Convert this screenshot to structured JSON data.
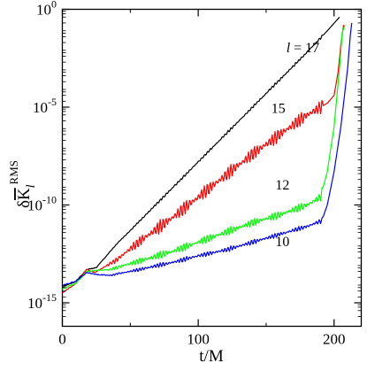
{
  "chart_data": {
    "type": "line",
    "title": "",
    "xlabel": "t/M",
    "ylabel": {
      "main": "δK",
      "overbar": "K",
      "subscript": "l",
      "superscript": "RMS"
    },
    "xlim": [
      0,
      220
    ],
    "ylim_log10": [
      -16.2,
      0
    ],
    "y_scale": "log",
    "x_ticks": [
      0,
      100,
      200
    ],
    "x_tick_labels": [
      "0",
      "100",
      "200"
    ],
    "x_minor_ticks": [
      50,
      150
    ],
    "y_ticks_log10": [
      -15,
      -10,
      -5,
      0
    ],
    "y_tick_labels": [
      {
        "base": "10",
        "exp": "-15"
      },
      {
        "base": "10",
        "exp": "-10"
      },
      {
        "base": "10",
        "exp": "-5"
      },
      {
        "base": "10",
        "exp": "0"
      }
    ],
    "grid": false,
    "series": [
      {
        "name": "17",
        "label_text": "l = 17",
        "label_italic": "l",
        "label_rest": " = 17",
        "label_at": {
          "x": 177,
          "log10_y": -2.2
        },
        "color": "#000000",
        "oscillation": 0.06,
        "points": [
          [
            0,
            -14.2
          ],
          [
            10,
            -13.9
          ],
          [
            18,
            -13.3
          ],
          [
            25,
            -13.2
          ],
          [
            40,
            -12.0
          ],
          [
            60,
            -10.6
          ],
          [
            80,
            -9.2
          ],
          [
            100,
            -7.8
          ],
          [
            120,
            -6.4
          ],
          [
            140,
            -5.0
          ],
          [
            160,
            -3.6
          ],
          [
            180,
            -2.2
          ],
          [
            195,
            -1.1
          ],
          [
            204,
            -0.4
          ]
        ]
      },
      {
        "name": "15",
        "label_text": "15",
        "label_at": {
          "x": 159,
          "log10_y": -5.3
        },
        "color": "#ff0000",
        "oscillation": 0.35,
        "points": [
          [
            0,
            -14.5
          ],
          [
            10,
            -14.0
          ],
          [
            18,
            -13.3
          ],
          [
            24,
            -13.45
          ],
          [
            40,
            -12.8
          ],
          [
            60,
            -11.7
          ],
          [
            80,
            -10.7
          ],
          [
            100,
            -9.6
          ],
          [
            120,
            -8.5
          ],
          [
            140,
            -7.4
          ],
          [
            160,
            -6.4
          ],
          [
            180,
            -5.4
          ],
          [
            195,
            -4.8
          ],
          [
            200,
            -4.4
          ],
          [
            203,
            -3.2
          ],
          [
            205,
            -1.8
          ],
          [
            207,
            -0.8
          ]
        ]
      },
      {
        "name": "12",
        "label_text": "12",
        "label_at": {
          "x": 162,
          "log10_y": -9.2
        },
        "color": "#00ff00",
        "oscillation": 0.2,
        "points": [
          [
            0,
            -14.3
          ],
          [
            10,
            -14.0
          ],
          [
            18,
            -13.4
          ],
          [
            24,
            -13.35
          ],
          [
            35,
            -13.3
          ],
          [
            60,
            -12.8
          ],
          [
            80,
            -12.4
          ],
          [
            100,
            -11.9
          ],
          [
            120,
            -11.4
          ],
          [
            140,
            -10.9
          ],
          [
            160,
            -10.5
          ],
          [
            180,
            -10.0
          ],
          [
            190,
            -9.6
          ],
          [
            195,
            -8.3
          ],
          [
            200,
            -6.0
          ],
          [
            204,
            -3.0
          ],
          [
            206,
            -1.2
          ],
          [
            208,
            -0.8
          ]
        ]
      },
      {
        "name": "10",
        "label_text": "10",
        "label_at": {
          "x": 162,
          "log10_y": -12.1
        },
        "color": "#0000ff",
        "oscillation": 0.12,
        "points": [
          [
            0,
            -14.1
          ],
          [
            10,
            -13.9
          ],
          [
            18,
            -13.45
          ],
          [
            25,
            -13.55
          ],
          [
            35,
            -13.6
          ],
          [
            60,
            -13.25
          ],
          [
            80,
            -12.95
          ],
          [
            100,
            -12.6
          ],
          [
            120,
            -12.3
          ],
          [
            140,
            -11.9
          ],
          [
            160,
            -11.5
          ],
          [
            180,
            -11.1
          ],
          [
            191,
            -10.8
          ],
          [
            195,
            -10.0
          ],
          [
            200,
            -8.3
          ],
          [
            205,
            -6.0
          ],
          [
            210,
            -3.0
          ],
          [
            212,
            -1.3
          ],
          [
            213,
            -0.7
          ]
        ]
      }
    ]
  }
}
